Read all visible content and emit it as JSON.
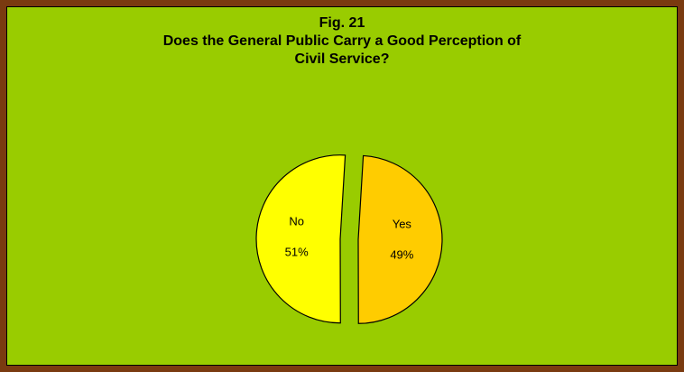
{
  "chart_data": {
    "type": "pie",
    "title_lines": [
      "Fig. 21",
      "Does the General Public Carry a Good Perception of",
      "Civil Service?"
    ],
    "slices": [
      {
        "label": "No",
        "value": 51,
        "percent_label": "51%",
        "color": "#ffff00"
      },
      {
        "label": "Yes",
        "value": 49,
        "percent_label": "49%",
        "color": "#ffcc00"
      }
    ],
    "exploded": true,
    "legend": "none"
  },
  "colors": {
    "border": "#7a3a10",
    "plot_background": "#99cc00"
  }
}
